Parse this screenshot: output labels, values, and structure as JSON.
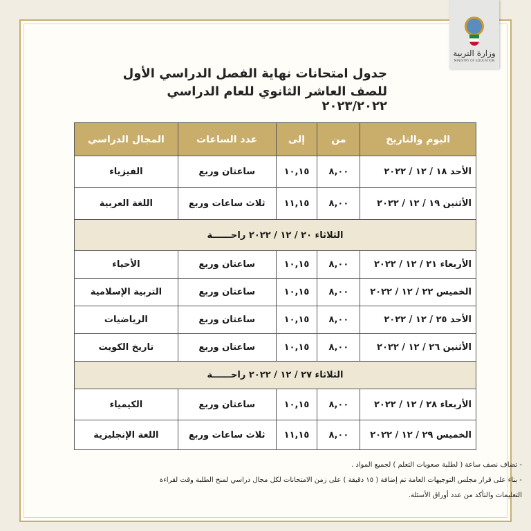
{
  "logo": {
    "name_ar": "وزارة التربية",
    "name_en": "MINISTRY OF EDUCATION"
  },
  "title": {
    "line1": "جدول امتحانات نهاية الفصل الدراسي الأول",
    "line2": "للصف العاشر الثانوي للعام الدراسي ٢٠٢٣/٢٠٢٢"
  },
  "table": {
    "headers": [
      "اليوم والتاريخ",
      "من",
      "إلى",
      "عدد الساعات",
      "المجال الدراسي"
    ],
    "rows": [
      {
        "type": "exam",
        "date": "الأحد  ١٨ / ١٢ / ٢٠٢٢",
        "from": "٨,٠٠",
        "to": "١٠,١٥",
        "hours": "ساعتان وربع",
        "subject": "الفيزياء"
      },
      {
        "type": "exam",
        "date": "الأثنين  ١٩ / ١٢ / ٢٠٢٢",
        "from": "٨,٠٠",
        "to": "١١,١٥",
        "hours": "ثلاث ساعات وربع",
        "subject": "اللغة العربية"
      },
      {
        "type": "rest",
        "text": "الثلاثاء  ٢٠ / ١٢ / ٢٠٢٢  راحــــــة"
      },
      {
        "type": "exam",
        "date": "الأربعاء  ٢١ / ١٢ / ٢٠٢٢",
        "from": "٨,٠٠",
        "to": "١٠,١٥",
        "hours": "ساعتان وربع",
        "subject": "الأحياء"
      },
      {
        "type": "exam",
        "date": "الخميس ٢٢ / ١٢ / ٢٠٢٢",
        "from": "٨,٠٠",
        "to": "١٠,١٥",
        "hours": "ساعتان وربع",
        "subject": "التربية الإسلامية"
      },
      {
        "type": "exam",
        "date": "الأحد ٢٥ / ١٢ / ٢٠٢٢",
        "from": "٨,٠٠",
        "to": "١٠,١٥",
        "hours": "ساعتان وربع",
        "subject": "الرياضيات"
      },
      {
        "type": "exam",
        "date": "الأثنين  ٢٦ / ١٢ / ٢٠٢٢",
        "from": "٨,٠٠",
        "to": "١٠,١٥",
        "hours": "ساعتان وربع",
        "subject": "تاريخ الكويت"
      },
      {
        "type": "rest",
        "text": "الثلاثاء  ٢٧ / ١٢ / ٢٠٢٢  راحــــــة"
      },
      {
        "type": "exam",
        "date": "الأربعاء  ٢٨ / ١٢ / ٢٠٢٢",
        "from": "٨,٠٠",
        "to": "١٠,١٥",
        "hours": "ساعتان وربع",
        "subject": "الكيمياء"
      },
      {
        "type": "exam",
        "date": "الخميس  ٢٩ / ١٢ / ٢٠٢٢",
        "from": "٨,٠٠",
        "to": "١١,١٥",
        "hours": "ثلاث ساعات وربع",
        "subject": "اللغة الإنجليزية"
      }
    ]
  },
  "notes": [
    "- تضاف نصف ساعة ( لطلبة صعوبات التعلم ) لجميع المواد .",
    "- بناء على قرار مجلس التوجيهات العامة تم إضافة ( ١٥ دقيقة ) على زمن الامتحانات لكل مجال دراسي لمنح الطلبة وقت لقراءة",
    "التعليمات والتأكد من عدد أوراق الأسئلة."
  ],
  "colors": {
    "header_gold": "#c9ad6b",
    "rest_row": "#ede7d3",
    "frame_gold": "#c8ae6c"
  }
}
